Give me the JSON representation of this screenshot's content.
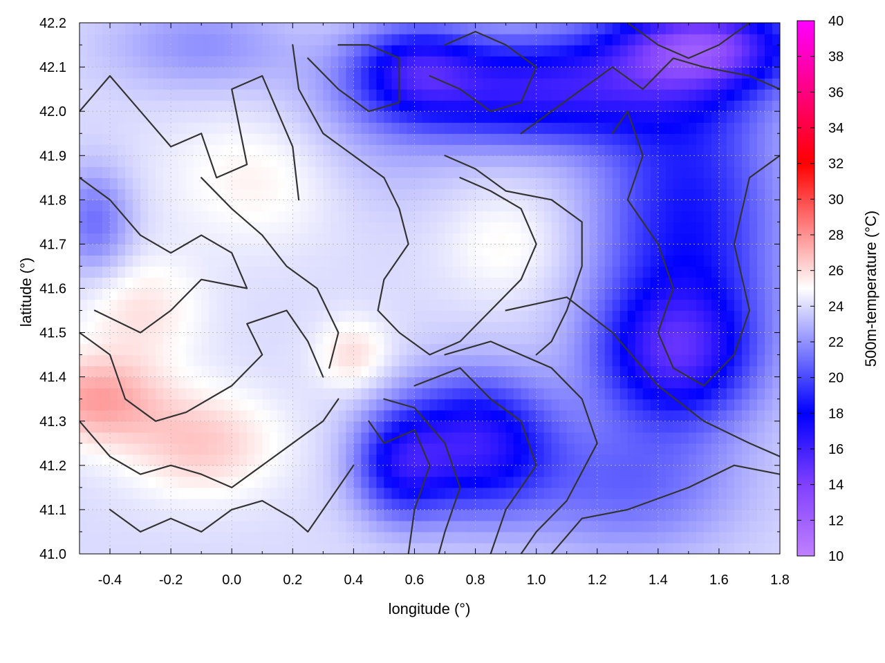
{
  "chart_data": {
    "type": "heatmap",
    "title": "",
    "xlabel": "longitude (°)",
    "ylabel": "latitude (°)",
    "colorbar_label": "500m-temperature (°C)",
    "xlim": [
      -0.5,
      1.8
    ],
    "ylim": [
      41.0,
      42.2
    ],
    "x_ticks": [
      -0.4,
      -0.2,
      0.0,
      0.2,
      0.4,
      0.6,
      0.8,
      1.0,
      1.2,
      1.4,
      1.6,
      1.8
    ],
    "x_tick_labels": [
      "-0.4",
      "-0.2",
      "0.0",
      "0.2",
      "0.4",
      "0.6",
      "0.8",
      "1.0",
      "1.2",
      "1.4",
      "1.6",
      "1.8"
    ],
    "y_ticks": [
      41.0,
      41.1,
      41.2,
      41.3,
      41.4,
      41.5,
      41.6,
      41.7,
      41.8,
      41.9,
      42.0,
      42.1,
      42.2
    ],
    "y_tick_labels": [
      "41.0",
      "41.1",
      "41.2",
      "41.3",
      "41.4",
      "41.5",
      "41.6",
      "41.7",
      "41.8",
      "41.9",
      "42.0",
      "42.1",
      "42.2"
    ],
    "colorbar": {
      "range": [
        10,
        40
      ],
      "ticks": [
        10,
        12,
        14,
        16,
        18,
        20,
        22,
        24,
        26,
        28,
        30,
        32,
        34,
        36,
        38,
        40
      ],
      "tick_labels": [
        "10",
        "12",
        "14",
        "16",
        "18",
        "20",
        "22",
        "24",
        "26",
        "28",
        "30",
        "32",
        "34",
        "36",
        "38",
        "40"
      ],
      "colors": [
        {
          "value": 10,
          "color": "#c080ff"
        },
        {
          "value": 14,
          "color": "#8040ff"
        },
        {
          "value": 18,
          "color": "#0000ff"
        },
        {
          "value": 25,
          "color": "#ffffff"
        },
        {
          "value": 32,
          "color": "#ff0000"
        },
        {
          "value": 36,
          "color": "#ff0080"
        },
        {
          "value": 40,
          "color": "#ff00ff"
        }
      ]
    },
    "grid": true,
    "field_blobs": [
      {
        "x": -0.45,
        "y": 41.35,
        "sx": 0.22,
        "sy": 0.1,
        "temp": 3.5
      },
      {
        "x": -0.1,
        "y": 41.25,
        "sx": 0.25,
        "sy": 0.12,
        "temp": 2.5
      },
      {
        "x": -0.3,
        "y": 41.55,
        "sx": 0.2,
        "sy": 0.12,
        "temp": 1.8
      },
      {
        "x": 0.4,
        "y": 41.45,
        "sx": 0.12,
        "sy": 0.08,
        "temp": 2.0
      },
      {
        "x": 0.1,
        "y": 41.85,
        "sx": 0.3,
        "sy": 0.15,
        "temp": 1.5
      },
      {
        "x": 0.9,
        "y": 41.7,
        "sx": 0.2,
        "sy": 0.12,
        "temp": 1.2
      },
      {
        "x": 0.45,
        "y": 41.9,
        "sx": 0.3,
        "sy": 0.15,
        "temp": -1.0
      },
      {
        "x": 1.0,
        "y": 42.05,
        "sx": 0.5,
        "sy": 0.12,
        "temp": -7.5
      },
      {
        "x": 0.6,
        "y": 42.1,
        "sx": 0.2,
        "sy": 0.1,
        "temp": -5.0
      },
      {
        "x": 1.55,
        "y": 42.15,
        "sx": 0.3,
        "sy": 0.1,
        "temp": -9.0
      },
      {
        "x": 1.5,
        "y": 41.75,
        "sx": 0.3,
        "sy": 0.35,
        "temp": -5.5
      },
      {
        "x": 1.45,
        "y": 41.45,
        "sx": 0.25,
        "sy": 0.15,
        "temp": -6.5
      },
      {
        "x": 0.8,
        "y": 41.25,
        "sx": 0.25,
        "sy": 0.15,
        "temp": -7.5
      },
      {
        "x": 0.55,
        "y": 41.2,
        "sx": 0.15,
        "sy": 0.12,
        "temp": -5.0
      },
      {
        "x": 1.3,
        "y": 41.15,
        "sx": 0.35,
        "sy": 0.15,
        "temp": -3.0
      },
      {
        "x": -0.45,
        "y": 41.75,
        "sx": 0.12,
        "sy": 0.12,
        "temp": -3.0
      },
      {
        "x": -0.1,
        "y": 42.15,
        "sx": 0.3,
        "sy": 0.1,
        "temp": -2.0
      }
    ],
    "contour_lines": [
      [
        [
          -0.5,
          42.0
        ],
        [
          -0.4,
          42.08
        ],
        [
          -0.3,
          42.0
        ],
        [
          -0.2,
          41.92
        ],
        [
          -0.1,
          41.95
        ],
        [
          -0.05,
          41.85
        ],
        [
          0.05,
          41.88
        ],
        [
          0.0,
          42.05
        ],
        [
          0.1,
          42.08
        ],
        [
          0.2,
          41.92
        ],
        [
          0.22,
          41.8
        ]
      ],
      [
        [
          -0.5,
          41.85
        ],
        [
          -0.4,
          41.8
        ],
        [
          -0.3,
          41.72
        ],
        [
          -0.2,
          41.68
        ],
        [
          -0.1,
          41.72
        ],
        [
          0.0,
          41.68
        ],
        [
          0.05,
          41.6
        ],
        [
          -0.1,
          41.62
        ],
        [
          -0.2,
          41.55
        ],
        [
          -0.3,
          41.5
        ],
        [
          -0.45,
          41.55
        ]
      ],
      [
        [
          -0.5,
          41.5
        ],
        [
          -0.4,
          41.45
        ],
        [
          -0.35,
          41.35
        ],
        [
          -0.25,
          41.3
        ],
        [
          -0.15,
          41.32
        ],
        [
          0.0,
          41.38
        ],
        [
          0.1,
          41.45
        ],
        [
          0.05,
          41.52
        ],
        [
          0.18,
          41.55
        ],
        [
          0.25,
          41.48
        ],
        [
          0.3,
          41.4
        ]
      ],
      [
        [
          -0.5,
          41.3
        ],
        [
          -0.4,
          41.22
        ],
        [
          -0.3,
          41.18
        ],
        [
          -0.2,
          41.2
        ],
        [
          -0.1,
          41.18
        ],
        [
          0.0,
          41.15
        ],
        [
          0.1,
          41.2
        ],
        [
          0.2,
          41.25
        ],
        [
          0.3,
          41.3
        ],
        [
          0.35,
          41.35
        ]
      ],
      [
        [
          -0.4,
          41.1
        ],
        [
          -0.3,
          41.05
        ],
        [
          -0.2,
          41.08
        ],
        [
          -0.1,
          41.05
        ],
        [
          0.0,
          41.1
        ],
        [
          0.1,
          41.12
        ],
        [
          0.2,
          41.08
        ],
        [
          0.25,
          41.05
        ],
        [
          0.35,
          41.15
        ],
        [
          0.4,
          41.2
        ]
      ],
      [
        [
          -0.1,
          41.85
        ],
        [
          0.0,
          41.78
        ],
        [
          0.1,
          41.72
        ],
        [
          0.18,
          41.65
        ],
        [
          0.28,
          41.6
        ],
        [
          0.35,
          41.5
        ],
        [
          0.32,
          41.42
        ]
      ],
      [
        [
          0.2,
          42.15
        ],
        [
          0.22,
          42.05
        ],
        [
          0.3,
          41.95
        ],
        [
          0.4,
          41.9
        ],
        [
          0.5,
          41.85
        ],
        [
          0.55,
          41.78
        ],
        [
          0.58,
          41.7
        ],
        [
          0.5,
          41.62
        ],
        [
          0.48,
          41.55
        ],
        [
          0.55,
          41.5
        ],
        [
          0.65,
          41.45
        ],
        [
          0.75,
          41.48
        ],
        [
          0.85,
          41.55
        ],
        [
          0.95,
          41.62
        ],
        [
          1.0,
          41.7
        ],
        [
          0.95,
          41.78
        ],
        [
          0.85,
          41.82
        ],
        [
          0.75,
          41.85
        ]
      ],
      [
        [
          0.7,
          41.9
        ],
        [
          0.8,
          41.87
        ],
        [
          0.9,
          41.82
        ],
        [
          1.05,
          41.8
        ],
        [
          1.15,
          41.75
        ],
        [
          1.15,
          41.65
        ],
        [
          1.1,
          41.55
        ],
        [
          1.05,
          41.48
        ],
        [
          1.0,
          41.45
        ]
      ],
      [
        [
          0.45,
          41.3
        ],
        [
          0.5,
          41.25
        ],
        [
          0.6,
          41.28
        ],
        [
          0.65,
          41.2
        ],
        [
          0.6,
          41.1
        ],
        [
          0.58,
          41.0
        ]
      ],
      [
        [
          0.5,
          41.35
        ],
        [
          0.6,
          41.33
        ],
        [
          0.7,
          41.25
        ],
        [
          0.75,
          41.15
        ],
        [
          0.7,
          41.05
        ],
        [
          0.68,
          41.0
        ]
      ],
      [
        [
          0.6,
          41.38
        ],
        [
          0.75,
          41.42
        ],
        [
          0.85,
          41.35
        ],
        [
          0.95,
          41.3
        ],
        [
          1.0,
          41.2
        ],
        [
          0.9,
          41.1
        ],
        [
          0.85,
          41.0
        ]
      ],
      [
        [
          0.7,
          41.45
        ],
        [
          0.85,
          41.48
        ],
        [
          1.05,
          41.42
        ],
        [
          1.15,
          41.35
        ],
        [
          1.2,
          41.25
        ],
        [
          1.1,
          41.12
        ],
        [
          1.0,
          41.05
        ],
        [
          0.95,
          41.0
        ]
      ],
      [
        [
          0.9,
          41.55
        ],
        [
          1.1,
          41.58
        ],
        [
          1.25,
          41.5
        ],
        [
          1.4,
          41.38
        ],
        [
          1.55,
          41.3
        ],
        [
          1.7,
          41.25
        ],
        [
          1.8,
          41.22
        ]
      ],
      [
        [
          1.05,
          41.0
        ],
        [
          1.15,
          41.08
        ],
        [
          1.3,
          41.1
        ],
        [
          1.5,
          41.15
        ],
        [
          1.65,
          41.2
        ],
        [
          1.8,
          41.18
        ]
      ],
      [
        [
          1.25,
          41.95
        ],
        [
          1.3,
          42.0
        ],
        [
          1.35,
          41.9
        ],
        [
          1.3,
          41.8
        ],
        [
          1.4,
          41.7
        ],
        [
          1.45,
          41.6
        ],
        [
          1.4,
          41.5
        ],
        [
          1.45,
          41.42
        ],
        [
          1.55,
          41.38
        ],
        [
          1.65,
          41.45
        ],
        [
          1.7,
          41.55
        ],
        [
          1.65,
          41.7
        ],
        [
          1.7,
          41.85
        ],
        [
          1.8,
          41.9
        ]
      ],
      [
        [
          0.25,
          42.12
        ],
        [
          0.35,
          42.05
        ],
        [
          0.45,
          42.0
        ],
        [
          0.55,
          42.02
        ],
        [
          0.55,
          42.12
        ],
        [
          0.45,
          42.15
        ],
        [
          0.35,
          42.15
        ]
      ],
      [
        [
          0.65,
          42.08
        ],
        [
          0.75,
          42.05
        ],
        [
          0.85,
          42.0
        ],
        [
          0.95,
          42.02
        ],
        [
          1.0,
          42.1
        ],
        [
          0.9,
          42.15
        ],
        [
          0.8,
          42.18
        ],
        [
          0.7,
          42.15
        ]
      ],
      [
        [
          0.95,
          41.95
        ],
        [
          1.05,
          42.0
        ],
        [
          1.15,
          42.05
        ],
        [
          1.25,
          42.1
        ],
        [
          1.35,
          42.05
        ],
        [
          1.45,
          42.12
        ],
        [
          1.55,
          42.1
        ],
        [
          1.7,
          42.08
        ],
        [
          1.8,
          42.05
        ]
      ],
      [
        [
          1.3,
          42.2
        ],
        [
          1.4,
          42.15
        ],
        [
          1.5,
          42.12
        ],
        [
          1.6,
          42.15
        ],
        [
          1.7,
          42.2
        ]
      ]
    ]
  }
}
